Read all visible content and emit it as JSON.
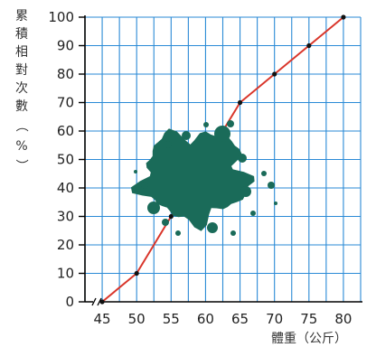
{
  "chart_data": {
    "type": "line",
    "ylabel": "累積相對次數（%）",
    "xlabel": "體重（公斤）",
    "x_ticks": [
      "45",
      "50",
      "55",
      "60",
      "65",
      "70",
      "75",
      "80"
    ],
    "y_ticks": [
      "0",
      "10",
      "20",
      "30",
      "40",
      "50",
      "60",
      "70",
      "80",
      "90",
      "100"
    ],
    "xlim": [
      42.5,
      82.5
    ],
    "ylim": [
      0,
      100
    ],
    "grid": true,
    "axis_break": true,
    "obscured_region": "ink blot covering x≈55–65, y≈25–68",
    "colors": {
      "grid": "#2a8ad6",
      "line": "#d9362b",
      "point": "#111111",
      "blot": "#1a6b59",
      "axis": "#000000"
    },
    "series": [
      {
        "x": [
          45,
          50,
          55,
          60,
          65,
          70,
          75,
          80
        ],
        "y": [
          0,
          10,
          30,
          null,
          70,
          80,
          90,
          100
        ]
      }
    ]
  }
}
